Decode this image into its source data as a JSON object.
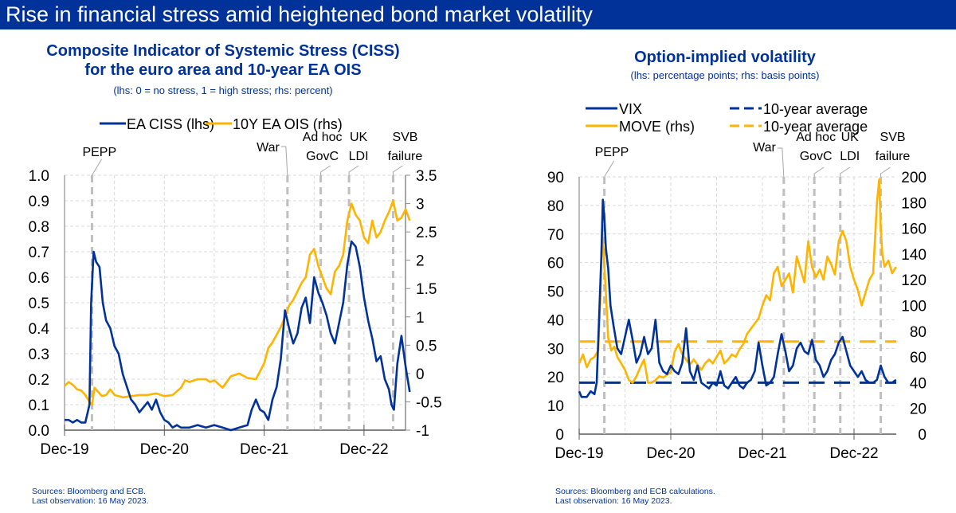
{
  "page_title": "Rise in financial stress amid heightened bond market volatility",
  "colors": {
    "navy": "#003299",
    "yellow": "#FFB400",
    "event": "#BFBFBF",
    "grid": "#D9D9D9",
    "axis": "#8C8C8C"
  },
  "chart_data": [
    {
      "type": "line",
      "title": "Composite Indicator of Systemic Stress (CISS) for the euro area and 10-year EA OIS",
      "title_lines": [
        "Composite Indicator of Systemic Stress (CISS)",
        "for the euro area and 10-year EA OIS"
      ],
      "subtitle": "(lhs: 0 = no stress, 1 = high stress; rhs: percent)",
      "x_unit": "months since Dec-2019",
      "xlim": [
        0,
        41.5
      ],
      "x_ticks": [
        {
          "x": 0,
          "label": "Dec-19"
        },
        {
          "x": 12,
          "label": "Dec-20"
        },
        {
          "x": 24,
          "label": "Dec-21"
        },
        {
          "x": 36,
          "label": "Dec-22"
        }
      ],
      "ylim": [
        0,
        1.0
      ],
      "y_ticks": [
        "0.0",
        "0.1",
        "0.2",
        "0.3",
        "0.4",
        "0.5",
        "0.6",
        "0.7",
        "0.8",
        "0.9",
        "1.0"
      ],
      "y_tick_values": [
        0,
        0.1,
        0.2,
        0.3,
        0.4,
        0.5,
        0.6,
        0.7,
        0.8,
        0.9,
        1.0
      ],
      "y2lim": [
        -1,
        3.5
      ],
      "y2_ticks": [
        "-1",
        "-0.5",
        "0",
        "0.5",
        "1",
        "1.5",
        "2",
        "2.5",
        "3",
        "3.5"
      ],
      "y2_tick_values": [
        -1,
        -0.5,
        0,
        0.5,
        1,
        1.5,
        2,
        2.5,
        3,
        3.5
      ],
      "grid": true,
      "legend": "top-center",
      "events": [
        {
          "x": 3.3,
          "label": [
            "PEPP"
          ]
        },
        {
          "x": 26.8,
          "label": [
            "War"
          ]
        },
        {
          "x": 30.8,
          "label": [
            "Ad hoc",
            "GovC"
          ]
        },
        {
          "x": 34.2,
          "label": [
            "UK",
            "LDI"
          ]
        },
        {
          "x": 39.5,
          "label": [
            "SVB",
            "failure"
          ]
        }
      ],
      "series": [
        {
          "name": "EA CISS (lhs)",
          "axis": "left",
          "color": "#003299",
          "x": [
            0,
            0.5,
            1,
            1.5,
            2,
            2.5,
            3,
            3.2,
            3.5,
            3.8,
            4.2,
            4.6,
            5,
            5.5,
            6,
            6.5,
            7,
            7.5,
            8,
            8.5,
            9,
            9.5,
            10,
            10.5,
            11,
            11.5,
            12,
            12.5,
            13,
            13.5,
            14,
            15,
            16,
            17,
            18,
            19,
            20,
            21,
            22,
            22.5,
            23,
            23.5,
            24,
            24.5,
            25,
            25.5,
            26,
            26.5,
            27,
            27.5,
            28,
            28.5,
            29,
            29.5,
            30,
            30.5,
            31,
            31.5,
            32,
            32.5,
            33,
            33.5,
            34,
            34.5,
            35,
            35.5,
            36,
            36.5,
            37,
            37.5,
            38,
            38.5,
            39,
            39.3,
            39.6,
            40,
            40.5,
            41,
            41.5
          ],
          "values": [
            0.04,
            0.04,
            0.03,
            0.04,
            0.03,
            0.03,
            0.1,
            0.5,
            0.7,
            0.66,
            0.64,
            0.5,
            0.43,
            0.4,
            0.33,
            0.3,
            0.22,
            0.17,
            0.12,
            0.1,
            0.07,
            0.09,
            0.11,
            0.08,
            0.12,
            0.07,
            0.04,
            0.03,
            0.01,
            0.02,
            0.01,
            0.01,
            0.02,
            0.01,
            0.02,
            0.01,
            0.0,
            0.01,
            0.02,
            0.08,
            0.12,
            0.08,
            0.07,
            0.04,
            0.12,
            0.17,
            0.28,
            0.47,
            0.4,
            0.34,
            0.38,
            0.48,
            0.52,
            0.42,
            0.6,
            0.54,
            0.5,
            0.45,
            0.38,
            0.34,
            0.42,
            0.5,
            0.65,
            0.74,
            0.72,
            0.64,
            0.52,
            0.43,
            0.36,
            0.27,
            0.29,
            0.2,
            0.16,
            0.1,
            0.08,
            0.26,
            0.37,
            0.25,
            0.15
          ]
        },
        {
          "name": "10Y EA OIS (rhs)",
          "axis": "right",
          "color": "#FFB400",
          "x": [
            0,
            0.5,
            1,
            1.5,
            2,
            2.5,
            3,
            3.3,
            3.6,
            4,
            4.5,
            5,
            5.5,
            6,
            7,
            8,
            9,
            10,
            11,
            12,
            13,
            14,
            14.5,
            15,
            16,
            17,
            17.5,
            18,
            19,
            20,
            21,
            22,
            23,
            24,
            24.5,
            25,
            26,
            26.5,
            27,
            27.5,
            28,
            28.5,
            29,
            29.5,
            30,
            30.5,
            31,
            31.5,
            32,
            32.5,
            33,
            33.5,
            34,
            34.5,
            35,
            35.5,
            36,
            36.5,
            37,
            37.5,
            38,
            38.5,
            39,
            39.5,
            40,
            40.5,
            41,
            41.5
          ],
          "values": [
            -0.22,
            -0.15,
            -0.2,
            -0.28,
            -0.3,
            -0.38,
            -0.5,
            -0.55,
            -0.25,
            -0.32,
            -0.4,
            -0.38,
            -0.28,
            -0.38,
            -0.42,
            -0.4,
            -0.38,
            -0.38,
            -0.35,
            -0.4,
            -0.38,
            -0.25,
            -0.12,
            -0.15,
            -0.1,
            -0.1,
            -0.15,
            -0.12,
            -0.25,
            -0.05,
            0.0,
            -0.08,
            -0.1,
            0.18,
            0.45,
            0.55,
            0.82,
            1.0,
            1.2,
            1.3,
            1.45,
            1.6,
            1.7,
            2.1,
            2.2,
            1.9,
            1.7,
            1.5,
            1.4,
            1.8,
            1.9,
            2.1,
            2.7,
            3.0,
            2.8,
            2.7,
            2.4,
            2.3,
            2.7,
            2.4,
            2.5,
            2.7,
            2.85,
            3.05,
            2.7,
            2.75,
            2.9,
            2.7
          ]
        }
      ]
    },
    {
      "type": "line",
      "title": "Option-implied volatility",
      "subtitle": "(lhs: percentage points; rhs: basis points)",
      "x_unit": "months since Dec-2019",
      "xlim": [
        0,
        41.5
      ],
      "x_ticks": [
        {
          "x": 0,
          "label": "Dec-19"
        },
        {
          "x": 12,
          "label": "Dec-20"
        },
        {
          "x": 24,
          "label": "Dec-21"
        },
        {
          "x": 36,
          "label": "Dec-22"
        }
      ],
      "ylim": [
        0,
        90
      ],
      "y_ticks": [
        "0",
        "10",
        "20",
        "30",
        "40",
        "50",
        "60",
        "70",
        "80",
        "90"
      ],
      "y_tick_values": [
        0,
        10,
        20,
        30,
        40,
        50,
        60,
        70,
        80,
        90
      ],
      "y2lim": [
        0,
        200
      ],
      "y2_ticks": [
        "0",
        "20",
        "40",
        "60",
        "80",
        "100",
        "120",
        "140",
        "160",
        "180",
        "200"
      ],
      "y2_tick_values": [
        0,
        20,
        40,
        60,
        80,
        100,
        120,
        140,
        160,
        180,
        200
      ],
      "grid": true,
      "legend": "top",
      "legend_entries": [
        {
          "label": "VIX",
          "style": "solid",
          "color": "#003299"
        },
        {
          "label": "10-year average",
          "style": "dashed",
          "color": "#003299"
        },
        {
          "label": "MOVE (rhs)",
          "style": "solid",
          "color": "#FFB400"
        },
        {
          "label": "10-year average",
          "style": "dashed",
          "color": "#FFB400"
        }
      ],
      "events": [
        {
          "x": 3.3,
          "label": [
            "PEPP"
          ]
        },
        {
          "x": 26.8,
          "label": [
            "War"
          ]
        },
        {
          "x": 30.8,
          "label": [
            "Ad hoc",
            "GovC"
          ]
        },
        {
          "x": 34.2,
          "label": [
            "UK",
            "LDI"
          ]
        },
        {
          "x": 39.5,
          "label": [
            "SVB",
            "failure"
          ]
        }
      ],
      "reference_lines": [
        {
          "name": "VIX 10-year average",
          "axis": "left",
          "value": 18,
          "color": "#003299",
          "style": "dashed"
        },
        {
          "name": "MOVE 10-year average",
          "axis": "right",
          "value": 72,
          "color": "#FFB400",
          "style": "dashed"
        }
      ],
      "series": [
        {
          "name": "VIX",
          "axis": "left",
          "color": "#003299",
          "x": [
            0,
            0.3,
            0.7,
            1,
            1.5,
            2,
            2.3,
            2.6,
            2.9,
            3.1,
            3.3,
            3.5,
            3.8,
            4.1,
            4.5,
            5,
            5.5,
            6,
            6.5,
            7,
            7.5,
            8,
            8.5,
            9,
            9.5,
            10,
            10.5,
            11,
            11.5,
            12,
            12.5,
            13,
            13.5,
            14,
            14.5,
            15,
            15.5,
            16,
            16.5,
            17,
            17.5,
            18,
            18.5,
            19,
            19.5,
            20,
            20.5,
            21,
            21.5,
            22,
            22.5,
            23,
            23.5,
            24,
            24.5,
            25,
            25.5,
            26,
            26.5,
            27,
            27.5,
            28,
            28.5,
            29,
            29.5,
            30,
            30.5,
            31,
            31.5,
            32,
            32.5,
            33,
            33.5,
            34,
            34.5,
            35,
            35.5,
            36,
            36.5,
            37,
            37.5,
            38,
            38.5,
            39,
            39.5,
            40,
            40.5,
            41,
            41.5
          ],
          "values": [
            15,
            13,
            13,
            13,
            15,
            14,
            18,
            40,
            62,
            82,
            76,
            65,
            58,
            45,
            38,
            30,
            28,
            34,
            40,
            33,
            25,
            28,
            34,
            28,
            30,
            40,
            25,
            22,
            21,
            24,
            22,
            21,
            25,
            37,
            22,
            19,
            24,
            18,
            17,
            16,
            18,
            17,
            22,
            17,
            16,
            18,
            20,
            17,
            16,
            18,
            19,
            22,
            32,
            24,
            17,
            18,
            20,
            28,
            35,
            29,
            22,
            24,
            30,
            32,
            29,
            28,
            33,
            26,
            24,
            20,
            22,
            26,
            28,
            32,
            34,
            29,
            24,
            22,
            20,
            22,
            19,
            18,
            18,
            19,
            24,
            20,
            18,
            18,
            19
          ]
        },
        {
          "name": "MOVE (rhs)",
          "axis": "right",
          "color": "#FFB400",
          "x": [
            0,
            0.5,
            1,
            1.5,
            2,
            2.5,
            2.8,
            3,
            3.2,
            3.5,
            3.8,
            4.2,
            4.6,
            5,
            5.5,
            6,
            6.5,
            7,
            7.5,
            8,
            8.5,
            9,
            9.5,
            10,
            10.5,
            11,
            11.5,
            12,
            12.5,
            13,
            13.5,
            14,
            14.5,
            15,
            15.5,
            16,
            16.5,
            17,
            17.5,
            18,
            18.5,
            19,
            19.5,
            20,
            20.5,
            21,
            21.5,
            22,
            22.5,
            23,
            23.5,
            24,
            24.5,
            25,
            25.5,
            26,
            26.5,
            27,
            27.5,
            28,
            28.5,
            29,
            29.5,
            30,
            30.5,
            31,
            31.5,
            32,
            32.5,
            33,
            33.5,
            34,
            34.5,
            35,
            35.5,
            36,
            36.5,
            37,
            37.5,
            38,
            38.5,
            39,
            39.3,
            39.5,
            39.7,
            40,
            40.5,
            41,
            41.5
          ],
          "values": [
            55,
            62,
            52,
            58,
            60,
            65,
            110,
            160,
            140,
            110,
            75,
            65,
            68,
            60,
            55,
            50,
            42,
            40,
            45,
            52,
            58,
            40,
            40,
            42,
            45,
            44,
            46,
            48,
            64,
            70,
            62,
            58,
            54,
            58,
            54,
            50,
            55,
            58,
            55,
            60,
            65,
            55,
            58,
            62,
            60,
            66,
            70,
            78,
            82,
            86,
            90,
            100,
            108,
            104,
            125,
            130,
            115,
            120,
            125,
            110,
            138,
            128,
            118,
            150,
            130,
            122,
            128,
            120,
            138,
            132,
            124,
            150,
            158,
            150,
            130,
            120,
            112,
            100,
            110,
            120,
            125,
            180,
            198,
            160,
            140,
            130,
            135,
            125,
            130
          ]
        }
      ]
    }
  ],
  "left_chart": {
    "legend": [
      {
        "label": "EA CISS (lhs)",
        "style": "solid",
        "color": "#003299"
      },
      {
        "label": "10Y EA OIS (rhs)",
        "style": "solid",
        "color": "#FFB400"
      }
    ],
    "sources": "Sources: Bloomberg and ECB.",
    "last_obs": "Last observation: 16 May 2023."
  },
  "right_chart": {
    "sources": "Sources: Bloomberg and ECB calculations.",
    "last_obs": "Last observation: 16 May 2023."
  }
}
